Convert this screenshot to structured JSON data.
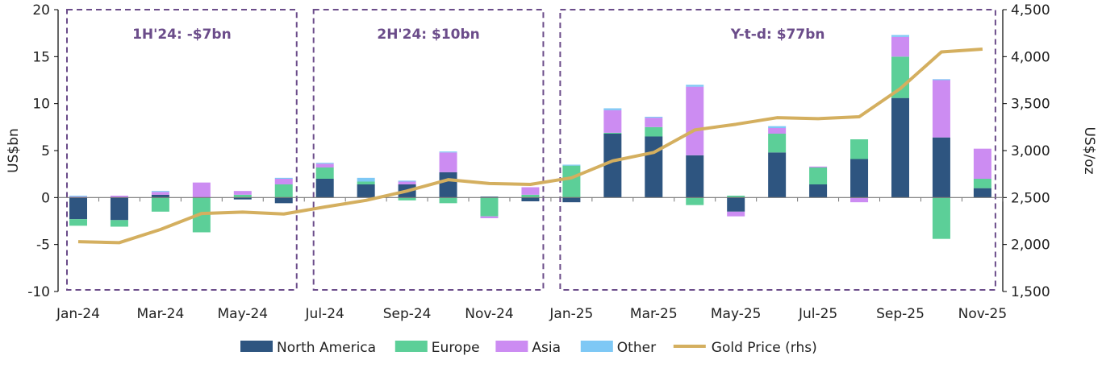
{
  "chart_data": {
    "type": "bar",
    "stacked": true,
    "categories": [
      "Jan-24",
      "Feb-24",
      "Mar-24",
      "Apr-24",
      "May-24",
      "Jun-24",
      "Jul-24",
      "Aug-24",
      "Sep-24",
      "Oct-24",
      "Nov-24",
      "Dec-24",
      "Jan-25",
      "Feb-25",
      "Mar-25",
      "Apr-25",
      "May-25",
      "Jun-25",
      "Jul-25",
      "Aug-25",
      "Sep-25",
      "Oct-25",
      "Nov-25"
    ],
    "tick_labels": [
      "Jan-24",
      "Mar-24",
      "May-24",
      "Jul-24",
      "Sep-24",
      "Nov-24",
      "Jan-25",
      "Mar-25",
      "May-25",
      "Jul-25",
      "Sep-25",
      "Nov-25"
    ],
    "series": [
      {
        "name": "North America",
        "color": "#2E5580",
        "values": [
          -2.3,
          -2.4,
          0.3,
          0,
          -0.2,
          -0.6,
          2.0,
          1.4,
          1.4,
          2.7,
          0.1,
          -0.4,
          -0.5,
          6.8,
          6.5,
          4.5,
          -1.5,
          4.8,
          1.4,
          4.1,
          10.6,
          6.4,
          1.0
        ]
      },
      {
        "name": "Europe",
        "color": "#5CCF98",
        "values": [
          -0.7,
          -0.7,
          -1.5,
          -3.7,
          0.3,
          1.4,
          1.2,
          0.3,
          -0.3,
          -0.6,
          -2.0,
          0.3,
          3.4,
          0.1,
          1.0,
          -0.8,
          0.2,
          2.0,
          1.8,
          2.1,
          4.4,
          -4.4,
          1.0
        ]
      },
      {
        "name": "Asia",
        "color": "#CC8CF2",
        "values": [
          0.1,
          0.2,
          0.3,
          1.6,
          0.4,
          0.6,
          0.4,
          0,
          0.3,
          2.1,
          -0.2,
          0.8,
          0,
          2.4,
          1.0,
          7.3,
          -0.5,
          0.6,
          0.1,
          -0.5,
          2.1,
          6.1,
          3.2
        ]
      },
      {
        "name": "Other",
        "color": "#7EC8F5",
        "values": [
          0.1,
          0,
          0.1,
          0,
          0,
          0.1,
          0.1,
          0.4,
          0.1,
          0.1,
          0,
          0,
          0.1,
          0.2,
          0.1,
          0.2,
          0,
          0.2,
          0,
          0,
          0.2,
          0.1,
          0
        ]
      }
    ],
    "line_series": {
      "name": "Gold Price (rhs)",
      "color": "#D4AF5F",
      "axis": "right",
      "values": [
        2030,
        2020,
        2160,
        2330,
        2345,
        2325,
        2400,
        2470,
        2570,
        2690,
        2650,
        2640,
        2710,
        2890,
        2980,
        3220,
        3280,
        3350,
        3340,
        3360,
        3660,
        4050,
        4080
      ]
    },
    "ylabel": "US$bn",
    "ylim": [
      -10,
      20
    ],
    "yticks": [
      -10,
      -5,
      0,
      5,
      10,
      15,
      20
    ],
    "ylabel_right": "US$/oz",
    "ylim_right": [
      1500,
      4500
    ],
    "yticks_right": [
      "1,500",
      "2,000",
      "2,500",
      "3,000",
      "3,500",
      "4,000",
      "4,500"
    ],
    "grid": false,
    "legend": "bottom",
    "annotations": [
      {
        "text": "1H'24: -$7bn",
        "from": "Jan-24",
        "to": "Jun-24"
      },
      {
        "text": "2H'24: $10bn",
        "from": "Jul-24",
        "to": "Dec-24"
      },
      {
        "text": "Y-t-d: $77bn",
        "from": "Jan-25",
        "to": "Nov-25"
      }
    ],
    "annotation_color": "#6B4C8A"
  }
}
